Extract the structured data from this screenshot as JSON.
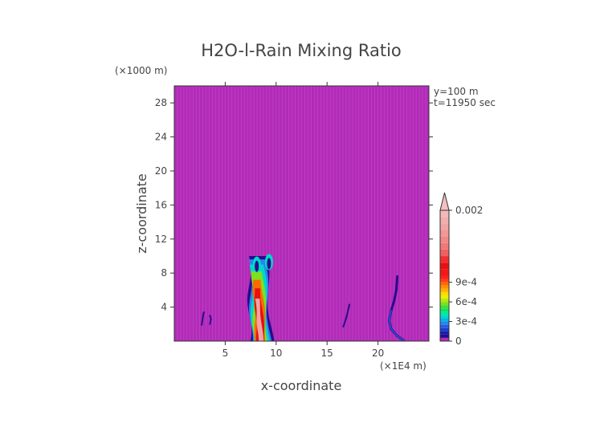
{
  "chart_data": {
    "type": "heatmap",
    "title": "H2O-l-Rain Mixing Ratio",
    "xlabel": "x-coordinate",
    "ylabel": "z-coordinate",
    "x_unit": "(×1E4 m)",
    "y_unit": "(×1000 m)",
    "xlim": [
      0,
      25
    ],
    "ylim": [
      0,
      30
    ],
    "x_ticks": [
      5,
      10,
      15,
      20
    ],
    "y_ticks": [
      4,
      8,
      12,
      16,
      20,
      24,
      28
    ],
    "x_tick_labels": [
      "5",
      "10",
      "15",
      "20"
    ],
    "y_tick_labels": [
      "4",
      "8",
      "12",
      "16",
      "20",
      "24",
      "28"
    ],
    "annotations": [
      "y=100 m",
      "t=11950 sec"
    ],
    "colorbar": {
      "min": 0,
      "max": 0.002,
      "tick_values": [
        0,
        0.0003,
        0.0006,
        0.0009,
        0.002
      ],
      "tick_labels": [
        "0",
        "3e-4",
        "6e-4",
        "9e-4",
        "0.002"
      ],
      "bands": [
        {
          "upto": 5e-05,
          "color": "#b22bb8"
        },
        {
          "upto": 0.0001,
          "color": "#2a0a8c"
        },
        {
          "upto": 0.00015,
          "color": "#1a1ab0"
        },
        {
          "upto": 0.0002,
          "color": "#1c3ccc"
        },
        {
          "upto": 0.00025,
          "color": "#1f5fe0"
        },
        {
          "upto": 0.0003,
          "color": "#2a84f0"
        },
        {
          "upto": 0.00035,
          "color": "#00b8e0"
        },
        {
          "upto": 0.0004,
          "color": "#00d8c8"
        },
        {
          "upto": 0.00045,
          "color": "#00e8a0"
        },
        {
          "upto": 0.0005,
          "color": "#10e060"
        },
        {
          "upto": 0.00055,
          "color": "#40e030"
        },
        {
          "upto": 0.0006,
          "color": "#7de020"
        },
        {
          "upto": 0.00065,
          "color": "#b8e810"
        },
        {
          "upto": 0.0007,
          "color": "#e8f000"
        },
        {
          "upto": 0.00075,
          "color": "#ffd800"
        },
        {
          "upto": 0.0008,
          "color": "#ffb000"
        },
        {
          "upto": 0.00085,
          "color": "#ff9000"
        },
        {
          "upto": 0.0009,
          "color": "#ff6a00"
        },
        {
          "upto": 0.00095,
          "color": "#ff4010"
        },
        {
          "upto": 0.001,
          "color": "#ff2020"
        },
        {
          "upto": 0.0011,
          "color": "#f01818"
        },
        {
          "upto": 0.0012,
          "color": "#e81010"
        },
        {
          "upto": 0.0013,
          "color": "#f03030"
        },
        {
          "upto": 0.0014,
          "color": "#f06060"
        },
        {
          "upto": 0.0015,
          "color": "#f07878"
        },
        {
          "upto": 0.0016,
          "color": "#f08888"
        },
        {
          "upto": 0.0017,
          "color": "#f09898"
        },
        {
          "upto": 0.0018,
          "color": "#f0a4a4"
        },
        {
          "upto": 0.0019,
          "color": "#f0aeae"
        },
        {
          "upto": 0.002,
          "color": "#f4b8b8"
        }
      ],
      "overflow_color": "#f4c0c0"
    },
    "background_color": "#b22bb8",
    "features": [
      {
        "name": "main-rain-column",
        "x": [
          7.4,
          9.6
        ],
        "z": [
          0.0,
          10.0
        ],
        "peak": 0.002
      },
      {
        "name": "left-streak",
        "x": [
          2.6,
          3.8
        ],
        "z": [
          1.8,
          3.4
        ],
        "peak": 0.0001
      },
      {
        "name": "mid-streak",
        "x": [
          16.5,
          17.5
        ],
        "z": [
          1.6,
          4.4
        ],
        "peak": 0.0001
      },
      {
        "name": "right-filament",
        "x": [
          20.8,
          22.6
        ],
        "z": [
          0.0,
          7.6
        ],
        "peak": 0.00025
      }
    ]
  }
}
